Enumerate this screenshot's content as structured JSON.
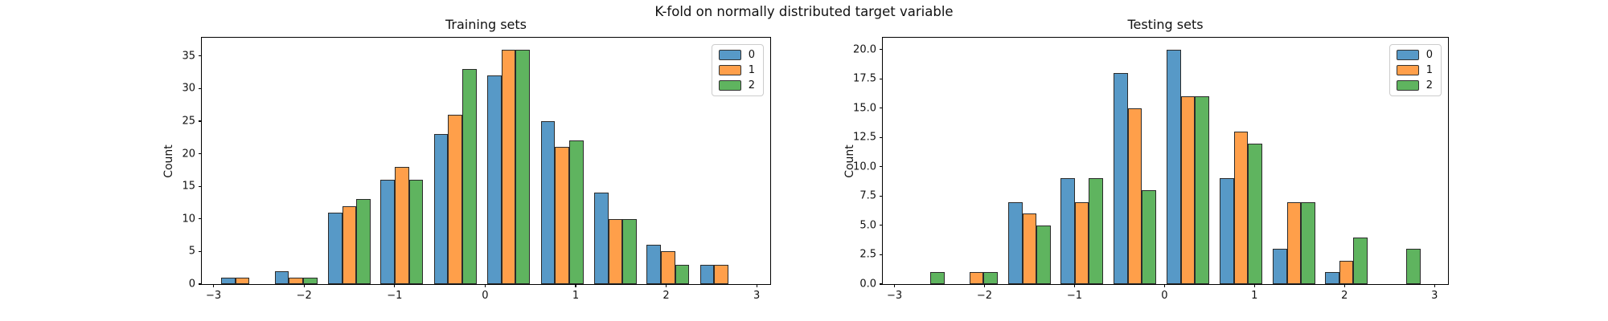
{
  "figure": {
    "suptitle": "K-fold on normally distributed target variable"
  },
  "colors": {
    "fold0": "#5799c7",
    "fold1": "#ff9f4a",
    "fold2": "#5fb45f",
    "bar_edge": "#2b2b2b",
    "axis": "#000000",
    "legend_border": "#cccccc",
    "background": "#ffffff"
  },
  "legend": {
    "labels": [
      "0",
      "1",
      "2"
    ]
  },
  "chart_data": [
    {
      "type": "bar",
      "title": "Training sets",
      "ylabel": "Count",
      "xlabel": "",
      "grid": false,
      "legend_position": "upper right",
      "bin_width": 0.588,
      "dodge_shrink": 0.8,
      "bin_centers": [
        -2.68,
        -2.09,
        -1.5,
        -0.92,
        -0.33,
        0.26,
        0.85,
        1.44,
        2.02,
        2.61
      ],
      "series": [
        {
          "name": "0",
          "values": [
            1,
            2,
            11,
            16,
            23,
            32,
            25,
            14,
            6,
            3
          ]
        },
        {
          "name": "1",
          "values": [
            1,
            1,
            12,
            18,
            26,
            36,
            21,
            10,
            5,
            3
          ]
        },
        {
          "name": "2",
          "values": [
            0,
            1,
            13,
            16,
            33,
            36,
            22,
            10,
            3,
            0
          ]
        }
      ],
      "xlim": [
        -3.13,
        3.15
      ],
      "ylim": [
        0,
        37.8
      ],
      "xticks": [
        {
          "v": -3,
          "label": "−3"
        },
        {
          "v": -2,
          "label": "−2"
        },
        {
          "v": -1,
          "label": "−1"
        },
        {
          "v": 0,
          "label": "0"
        },
        {
          "v": 1,
          "label": "1"
        },
        {
          "v": 2,
          "label": "2"
        },
        {
          "v": 3,
          "label": "3"
        }
      ],
      "yticks": [
        {
          "v": 0,
          "label": "0"
        },
        {
          "v": 5,
          "label": "5"
        },
        {
          "v": 10,
          "label": "10"
        },
        {
          "v": 15,
          "label": "15"
        },
        {
          "v": 20,
          "label": "20"
        },
        {
          "v": 25,
          "label": "25"
        },
        {
          "v": 30,
          "label": "30"
        },
        {
          "v": 35,
          "label": "35"
        }
      ]
    },
    {
      "type": "bar",
      "title": "Testing sets",
      "ylabel": "Count",
      "xlabel": "",
      "grid": false,
      "legend_position": "upper right",
      "bin_width": 0.588,
      "dodge_shrink": 0.8,
      "bin_centers": [
        -2.68,
        -2.09,
        -1.5,
        -0.92,
        -0.33,
        0.26,
        0.85,
        1.44,
        2.02,
        2.61
      ],
      "series": [
        {
          "name": "0",
          "values": [
            0,
            0,
            7,
            9,
            18,
            20,
            9,
            3,
            1,
            0
          ]
        },
        {
          "name": "1",
          "values": [
            0,
            1,
            6,
            7,
            15,
            16,
            13,
            7,
            2,
            0
          ]
        },
        {
          "name": "2",
          "values": [
            1,
            1,
            5,
            9,
            8,
            16,
            12,
            7,
            4,
            3
          ]
        }
      ],
      "xlim": [
        -3.13,
        3.15
      ],
      "ylim": [
        0,
        21
      ],
      "xticks": [
        {
          "v": -3,
          "label": "−3"
        },
        {
          "v": -2,
          "label": "−2"
        },
        {
          "v": -1,
          "label": "−1"
        },
        {
          "v": 0,
          "label": "0"
        },
        {
          "v": 1,
          "label": "1"
        },
        {
          "v": 2,
          "label": "2"
        },
        {
          "v": 3,
          "label": "3"
        }
      ],
      "yticks": [
        {
          "v": 0,
          "label": "0.0"
        },
        {
          "v": 2.5,
          "label": "2.5"
        },
        {
          "v": 5,
          "label": "5.0"
        },
        {
          "v": 7.5,
          "label": "7.5"
        },
        {
          "v": 10,
          "label": "10.0"
        },
        {
          "v": 12.5,
          "label": "12.5"
        },
        {
          "v": 15,
          "label": "15.0"
        },
        {
          "v": 17.5,
          "label": "17.5"
        },
        {
          "v": 20,
          "label": "20.0"
        }
      ]
    }
  ]
}
